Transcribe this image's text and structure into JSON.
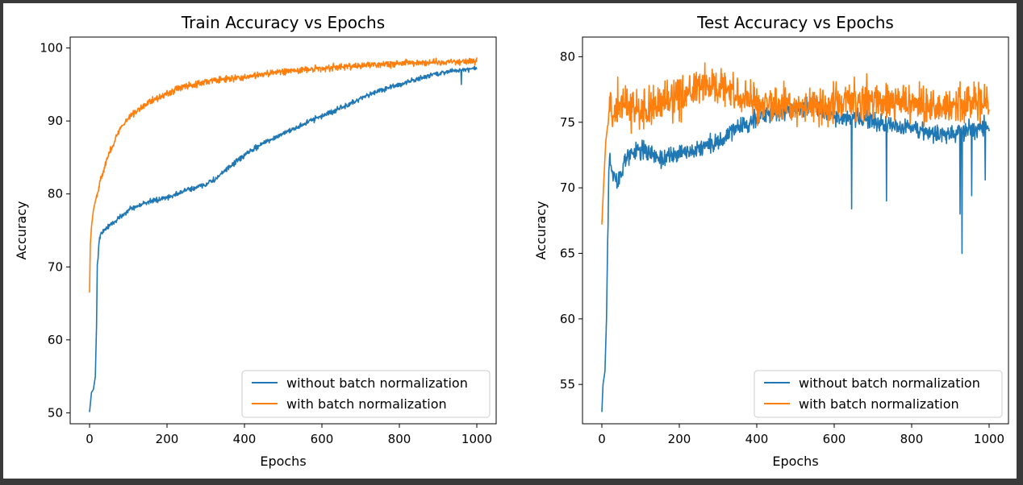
{
  "figure": {
    "background": "#ffffff",
    "frame": "#3a3a3a"
  },
  "series_colors": {
    "without": "#1f77b4",
    "with": "#ff7f0e"
  },
  "chart_data": [
    {
      "type": "line",
      "title": "Train Accuracy vs Epochs",
      "xlabel": "Epochs",
      "ylabel": "Accuracy",
      "xlim": [
        -50,
        1050
      ],
      "ylim": [
        48.5,
        101.5
      ],
      "xticks": [
        0,
        200,
        400,
        600,
        800,
        1000
      ],
      "yticks": [
        50,
        60,
        70,
        80,
        90,
        100
      ],
      "grid": false,
      "legend": "lower right",
      "series": [
        {
          "name": "without batch normalization",
          "color": "#1f77b4",
          "noise": 0.35,
          "spikes": [
            [
              960,
              95.0
            ]
          ],
          "points": [
            [
              0,
              50.1
            ],
            [
              5,
              52.8
            ],
            [
              10,
              53.2
            ],
            [
              15,
              55.0
            ],
            [
              18,
              62.0
            ],
            [
              20,
              70.0
            ],
            [
              25,
              73.8
            ],
            [
              30,
              74.5
            ],
            [
              40,
              75.2
            ],
            [
              60,
              76.0
            ],
            [
              100,
              77.8
            ],
            [
              150,
              78.9
            ],
            [
              200,
              79.5
            ],
            [
              250,
              80.5
            ],
            [
              300,
              81.3
            ],
            [
              330,
              82.2
            ],
            [
              350,
              83.2
            ],
            [
              400,
              85.3
            ],
            [
              450,
              87.0
            ],
            [
              500,
              88.3
            ],
            [
              550,
              89.5
            ],
            [
              600,
              90.7
            ],
            [
              650,
              91.8
            ],
            [
              700,
              93.0
            ],
            [
              750,
              94.2
            ],
            [
              800,
              95.0
            ],
            [
              850,
              95.8
            ],
            [
              900,
              96.5
            ],
            [
              950,
              97.0
            ],
            [
              1000,
              97.2
            ]
          ]
        },
        {
          "name": "with batch normalization",
          "color": "#ff7f0e",
          "noise": 0.45,
          "spikes": [],
          "points": [
            [
              0,
              66.5
            ],
            [
              2,
              73.0
            ],
            [
              5,
              75.5
            ],
            [
              10,
              77.8
            ],
            [
              20,
              80.2
            ],
            [
              30,
              82.2
            ],
            [
              50,
              85.5
            ],
            [
              75,
              88.5
            ],
            [
              100,
              90.5
            ],
            [
              150,
              92.5
            ],
            [
              200,
              93.8
            ],
            [
              250,
              94.8
            ],
            [
              300,
              95.4
            ],
            [
              400,
              96.0
            ],
            [
              500,
              96.8
            ],
            [
              600,
              97.2
            ],
            [
              700,
              97.6
            ],
            [
              800,
              97.9
            ],
            [
              900,
              98.1
            ],
            [
              1000,
              98.2
            ]
          ]
        }
      ]
    },
    {
      "type": "line",
      "title": "Test Accuracy vs Epochs",
      "xlabel": "Epochs",
      "ylabel": "Accuracy",
      "xlim": [
        -50,
        1050
      ],
      "ylim": [
        52.0,
        81.5
      ],
      "xticks": [
        0,
        200,
        400,
        600,
        800,
        1000
      ],
      "yticks": [
        55,
        60,
        65,
        70,
        75,
        80
      ],
      "grid": false,
      "legend": "lower right",
      "series": [
        {
          "name": "without batch normalization",
          "color": "#1f77b4",
          "noise": 0.7,
          "spikes": [
            [
              645,
              68.4
            ],
            [
              735,
              69.0
            ],
            [
              925,
              68.0
            ],
            [
              930,
              65.0
            ],
            [
              955,
              69.4
            ],
            [
              990,
              70.6
            ]
          ],
          "points": [
            [
              0,
              52.9
            ],
            [
              3,
              55.0
            ],
            [
              8,
              56.0
            ],
            [
              12,
              60.0
            ],
            [
              15,
              66.0
            ],
            [
              18,
              71.0
            ],
            [
              20,
              72.5
            ],
            [
              30,
              71.0
            ],
            [
              40,
              70.4
            ],
            [
              60,
              72.2
            ],
            [
              100,
              73.0
            ],
            [
              150,
              72.1
            ],
            [
              200,
              72.6
            ],
            [
              250,
              73.0
            ],
            [
              300,
              73.4
            ],
            [
              350,
              74.5
            ],
            [
              400,
              75.3
            ],
            [
              450,
              75.8
            ],
            [
              500,
              76.0
            ],
            [
              550,
              76.3
            ],
            [
              600,
              75.5
            ],
            [
              700,
              75.0
            ],
            [
              800,
              74.5
            ],
            [
              900,
              74.0
            ],
            [
              1000,
              74.8
            ]
          ]
        },
        {
          "name": "with batch normalization",
          "color": "#ff7f0e",
          "noise": 1.5,
          "spikes": [],
          "points": [
            [
              0,
              67.2
            ],
            [
              5,
              70.5
            ],
            [
              10,
              73.5
            ],
            [
              20,
              76.0
            ],
            [
              50,
              76.6
            ],
            [
              100,
              75.8
            ],
            [
              150,
              76.2
            ],
            [
              200,
              77.0
            ],
            [
              250,
              77.6
            ],
            [
              300,
              77.8
            ],
            [
              350,
              77.4
            ],
            [
              400,
              76.4
            ],
            [
              500,
              76.2
            ],
            [
              600,
              76.4
            ],
            [
              700,
              76.8
            ],
            [
              800,
              76.3
            ],
            [
              900,
              76.1
            ],
            [
              1000,
              76.6
            ]
          ]
        }
      ]
    }
  ]
}
